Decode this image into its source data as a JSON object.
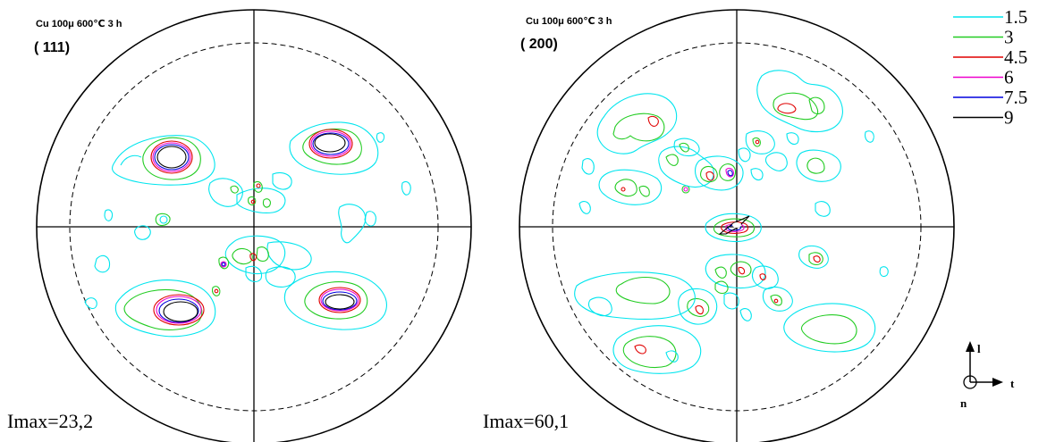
{
  "colors": {
    "level_1_5": "#00e5ee",
    "level_3": "#22cc22",
    "level_4_5": "#e00000",
    "level_6": "#ee00cc",
    "level_7_5": "#0000dd",
    "level_9": "#000000"
  },
  "figure_left": {
    "sample_label": "Cu 100μ 600℃ 3 h",
    "plane_label": "( 111)",
    "imax_label": "Imax=23,2"
  },
  "figure_right": {
    "sample_label": "Cu 100μ 600℃ 3 h",
    "plane_label": "( 200)",
    "imax_label": "Imax=60,1"
  },
  "legend": {
    "entries": [
      {
        "label": "1.5",
        "color": "#00e5ee"
      },
      {
        "label": "3",
        "color": "#22cc22"
      },
      {
        "label": "4.5",
        "color": "#e00000"
      },
      {
        "label": "6",
        "color": "#ee00cc"
      },
      {
        "label": "7.5",
        "color": "#0000dd"
      },
      {
        "label": "9",
        "color": "#000000"
      }
    ]
  },
  "axes_indicator": {
    "up_label": "l",
    "right_label": "t",
    "normal_label": "n"
  }
}
